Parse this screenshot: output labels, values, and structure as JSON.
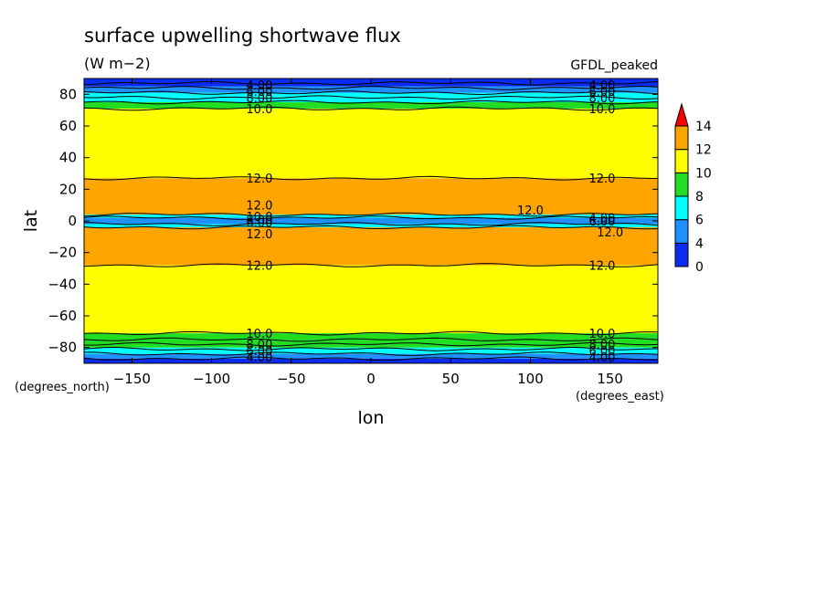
{
  "chart_data": {
    "type": "heatmap",
    "title": "surface upwelling shortwave flux",
    "units": "(W m−2)",
    "dataset": "GFDL_peaked",
    "xlabel": "lon",
    "ylabel": "lat",
    "x_units": "(degrees_east)",
    "y_units": "(degrees_north)",
    "xlim": [
      -180,
      180
    ],
    "ylim": [
      -90,
      90
    ],
    "x_ticks": [
      -150,
      -100,
      -50,
      0,
      50,
      100,
      150
    ],
    "y_ticks": [
      -80,
      -60,
      -40,
      -20,
      0,
      20,
      40,
      60,
      80
    ],
    "x_tick_labels": [
      "−150",
      "−100",
      "−50",
      "0",
      "50",
      "100",
      "150"
    ],
    "y_tick_labels": [
      "−80",
      "−60",
      "−40",
      "−20",
      "0",
      "20",
      "40",
      "60",
      "80"
    ],
    "colorbar": {
      "levels": [
        0,
        2,
        4,
        6,
        8,
        10,
        12,
        14
      ],
      "tick_labels": [
        "0",
        "4",
        "6",
        "8",
        "10",
        "12",
        "14"
      ],
      "colors": [
        "#0b2cf0",
        "#0b2cf0",
        "#1e90ff",
        "#00ffff",
        "#22dd22",
        "#ffff00",
        "#ffa500",
        "#ff0000"
      ]
    },
    "zonal_bands": [
      {
        "lat": [
          -90,
          -87
        ],
        "value": 2
      },
      {
        "lat": [
          -87,
          -84
        ],
        "value": 4
      },
      {
        "lat": [
          -84,
          -80
        ],
        "value": 6
      },
      {
        "lat": [
          -80,
          -75
        ],
        "value": 8
      },
      {
        "lat": [
          -75,
          -71
        ],
        "value": 9
      },
      {
        "lat": [
          -71,
          -28
        ],
        "value": 11
      },
      {
        "lat": [
          -28,
          -4
        ],
        "value": 12.5
      },
      {
        "lat": [
          -4,
          -2
        ],
        "value": 7
      },
      {
        "lat": [
          -2,
          2
        ],
        "value": 4
      },
      {
        "lat": [
          2,
          4
        ],
        "value": 7
      },
      {
        "lat": [
          4,
          27
        ],
        "value": 12.5
      },
      {
        "lat": [
          27,
          71
        ],
        "value": 11
      },
      {
        "lat": [
          71,
          75
        ],
        "value": 9
      },
      {
        "lat": [
          75,
          81
        ],
        "value": 7
      },
      {
        "lat": [
          81,
          85
        ],
        "value": 5
      },
      {
        "lat": [
          85,
          90
        ],
        "value": 2
      }
    ],
    "contour_labels": [
      {
        "text": "4.00",
        "lon": -70,
        "lat": 86
      },
      {
        "text": "6.00",
        "lon": -70,
        "lat": 82
      },
      {
        "text": "8.00",
        "lon": -70,
        "lat": 78
      },
      {
        "text": "10.0",
        "lon": -70,
        "lat": 71
      },
      {
        "text": "4.00",
        "lon": 145,
        "lat": 86
      },
      {
        "text": "6.00",
        "lon": 145,
        "lat": 82
      },
      {
        "text": "8.00",
        "lon": 145,
        "lat": 78
      },
      {
        "text": "10.0",
        "lon": 145,
        "lat": 71
      },
      {
        "text": "12.0",
        "lon": -70,
        "lat": 27
      },
      {
        "text": "12.0",
        "lon": 145,
        "lat": 27
      },
      {
        "text": "12.0",
        "lon": -70,
        "lat": 10
      },
      {
        "text": "12.0",
        "lon": 100,
        "lat": 7
      },
      {
        "text": "10.0",
        "lon": -70,
        "lat": 3
      },
      {
        "text": "8.00",
        "lon": -70,
        "lat": 1
      },
      {
        "text": "6.00",
        "lon": -70,
        "lat": -1
      },
      {
        "text": "4.00",
        "lon": 145,
        "lat": 2
      },
      {
        "text": "6.00",
        "lon": 145,
        "lat": 0
      },
      {
        "text": "12.0",
        "lon": -70,
        "lat": -8
      },
      {
        "text": "12.0",
        "lon": 150,
        "lat": -7
      },
      {
        "text": "12.0",
        "lon": -70,
        "lat": -28
      },
      {
        "text": "12.0",
        "lon": 145,
        "lat": -28
      },
      {
        "text": "10.0",
        "lon": -70,
        "lat": -71
      },
      {
        "text": "8.00",
        "lon": -70,
        "lat": -78
      },
      {
        "text": "6.00",
        "lon": -70,
        "lat": -82
      },
      {
        "text": "4.00",
        "lon": -70,
        "lat": -86
      },
      {
        "text": "10.0",
        "lon": 145,
        "lat": -71
      },
      {
        "text": "8.00",
        "lon": 145,
        "lat": -78
      },
      {
        "text": "6.00",
        "lon": 145,
        "lat": -82
      },
      {
        "text": "4.00",
        "lon": 145,
        "lat": -86
      }
    ],
    "contour_lines_lat": [
      87,
      84,
      81,
      78,
      75,
      71,
      27,
      4,
      2,
      -2,
      -4,
      -28,
      -71,
      -75,
      -78,
      -81,
      -84,
      -87
    ],
    "grid": false,
    "legend": "right"
  }
}
